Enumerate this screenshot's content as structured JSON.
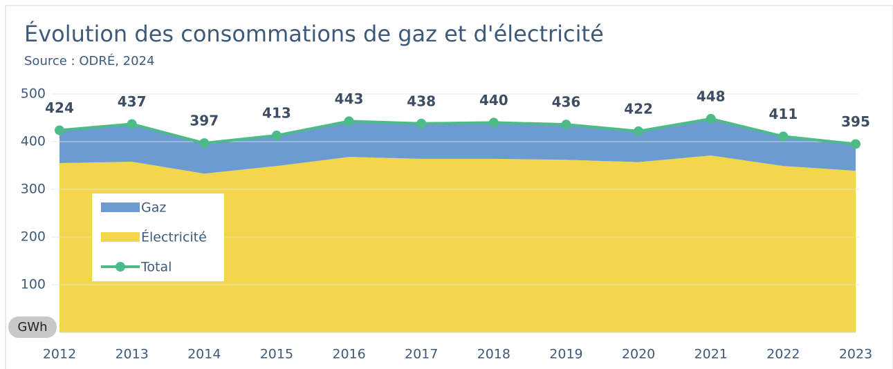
{
  "chart_data": {
    "type": "stacked_area",
    "title": "Évolution des consommations de gaz et d'électricité",
    "subtitle": "Source : ODRÉ, 2024",
    "y_label": "GWh",
    "categories": [
      "2012",
      "2013",
      "2014",
      "2015",
      "2016",
      "2017",
      "2018",
      "2019",
      "2020",
      "2021",
      "2022",
      "2023"
    ],
    "series": [
      {
        "name": "Gaz",
        "color": "#6b9bd1",
        "values": [
          69,
          79,
          64,
          64,
          75,
          74,
          76,
          74,
          65,
          77,
          62,
          56
        ]
      },
      {
        "name": "Électricité",
        "color": "#f2d64b",
        "values": [
          355,
          358,
          333,
          349,
          368,
          364,
          364,
          362,
          357,
          371,
          349,
          339
        ]
      },
      {
        "name": "Total",
        "color": "#4dbb87",
        "values": [
          424,
          437,
          397,
          413,
          443,
          438,
          440,
          436,
          422,
          448,
          411,
          395
        ]
      }
    ],
    "ylim": [
      0,
      500
    ],
    "yticks": [
      100,
      200,
      300,
      400,
      500
    ],
    "grid": true
  }
}
